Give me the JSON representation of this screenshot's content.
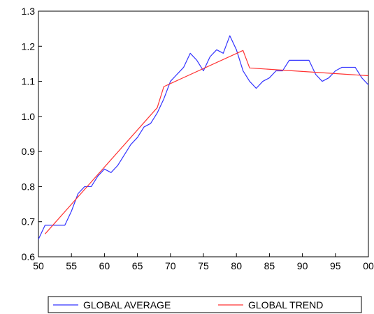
{
  "chart_data": {
    "type": "line",
    "title": "",
    "xlabel": "",
    "ylabel": "",
    "xlim": [
      1950,
      2000
    ],
    "ylim": [
      0.6,
      1.3
    ],
    "x_ticks": [
      1950,
      1955,
      1960,
      1965,
      1970,
      1975,
      1980,
      1985,
      1990,
      1995,
      2000
    ],
    "x_tick_labels": [
      "50",
      "55",
      "60",
      "65",
      "70",
      "75",
      "80",
      "85",
      "90",
      "95",
      "00"
    ],
    "y_ticks": [
      0.6,
      0.7,
      0.8,
      0.9,
      1.0,
      1.1,
      1.2,
      1.3
    ],
    "y_tick_labels": [
      "0.6",
      "0.7",
      "0.8",
      "0.9",
      "1.0",
      "1.1",
      "1.2",
      "1.3"
    ],
    "grid": false,
    "legend_position": "bottom",
    "series": [
      {
        "name": "GLOBAL AVERAGE",
        "color": "#3333ff",
        "x": [
          1950,
          1951,
          1952,
          1953,
          1954,
          1955,
          1956,
          1957,
          1958,
          1959,
          1960,
          1961,
          1962,
          1963,
          1964,
          1965,
          1966,
          1967,
          1968,
          1969,
          1970,
          1971,
          1972,
          1973,
          1974,
          1975,
          1976,
          1977,
          1978,
          1979,
          1980,
          1981,
          1982,
          1983,
          1984,
          1985,
          1986,
          1987,
          1988,
          1989,
          1990,
          1991,
          1992,
          1993,
          1994,
          1995,
          1996,
          1997,
          1998,
          1999,
          2000
        ],
        "y": [
          0.65,
          0.69,
          0.69,
          0.69,
          0.69,
          0.73,
          0.78,
          0.8,
          0.8,
          0.83,
          0.85,
          0.84,
          0.86,
          0.89,
          0.92,
          0.94,
          0.97,
          0.98,
          1.01,
          1.05,
          1.1,
          1.12,
          1.14,
          1.18,
          1.16,
          1.13,
          1.17,
          1.19,
          1.18,
          1.23,
          1.19,
          1.13,
          1.1,
          1.08,
          1.1,
          1.11,
          1.13,
          1.13,
          1.16,
          1.16,
          1.16,
          1.16,
          1.12,
          1.1,
          1.11,
          1.13,
          1.14,
          1.14,
          1.14,
          1.11,
          1.09
        ]
      },
      {
        "name": "GLOBAL TREND",
        "color": "#ff3333",
        "x": [
          1951,
          1968,
          1969,
          1981,
          1982,
          2000
        ],
        "y": [
          0.665,
          1.025,
          1.085,
          1.188,
          1.138,
          1.116
        ]
      }
    ]
  }
}
